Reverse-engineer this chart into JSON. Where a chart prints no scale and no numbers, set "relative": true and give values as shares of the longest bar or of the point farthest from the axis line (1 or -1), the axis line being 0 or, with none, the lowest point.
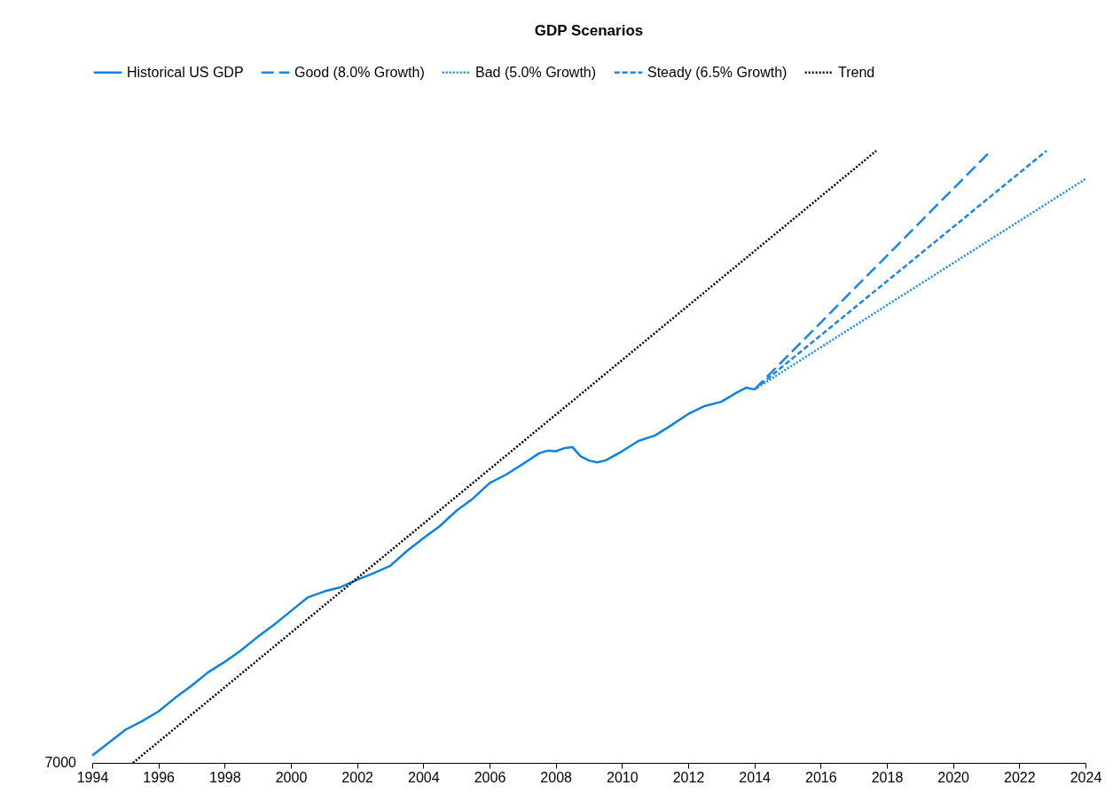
{
  "chart_data": {
    "type": "line",
    "title": "GDP Scenarios",
    "relative": true,
    "legend": "top",
    "xlim": [
      1994,
      2024
    ],
    "xticks": [
      1994,
      1996,
      1998,
      2000,
      2002,
      2004,
      2006,
      2008,
      2010,
      2012,
      2014,
      2016,
      2018,
      2020,
      2022,
      2024
    ],
    "annotations": [
      "7000"
    ],
    "series": [
      {
        "name": "Historical US GDP",
        "type": "line",
        "line_style": "solid",
        "color": "#0a84e0",
        "x": [
          1994.0,
          1994.5,
          1995.0,
          1995.5,
          1996.0,
          1996.5,
          1997.0,
          1997.5,
          1998.0,
          1998.5,
          1999.0,
          1999.5,
          2000.0,
          2000.5,
          2001.0,
          2001.5,
          2002.0,
          2002.5,
          2003.0,
          2003.5,
          2004.0,
          2004.5,
          2005.0,
          2005.5,
          2006.0,
          2006.5,
          2007.0,
          2007.5,
          2007.75,
          2008.0,
          2008.25,
          2008.5,
          2008.75,
          2009.0,
          2009.25,
          2009.5,
          2010.0,
          2010.5,
          2011.0,
          2011.5,
          2012.0,
          2012.5,
          2013.0,
          2013.5,
          2013.75,
          2014.0
        ],
        "values": [
          0.012,
          0.033,
          0.054,
          0.068,
          0.084,
          0.106,
          0.126,
          0.148,
          0.165,
          0.184,
          0.206,
          0.226,
          0.248,
          0.27,
          0.28,
          0.287,
          0.299,
          0.31,
          0.322,
          0.346,
          0.367,
          0.387,
          0.412,
          0.432,
          0.457,
          0.471,
          0.488,
          0.506,
          0.51,
          0.509,
          0.514,
          0.516,
          0.501,
          0.494,
          0.491,
          0.494,
          0.509,
          0.526,
          0.535,
          0.552,
          0.57,
          0.583,
          0.59,
          0.606,
          0.613,
          0.61
        ]
      },
      {
        "name": "Good (8.0% Growth)",
        "type": "line",
        "line_style": "longdash",
        "color": "#1a87e6",
        "x": [
          2014.0,
          2021.14
        ],
        "values": [
          0.61,
          1.0
        ]
      },
      {
        "name": "Bad (5.0% Growth)",
        "type": "line",
        "line_style": "dotted",
        "color": "#1a8cf0",
        "x": [
          2014.0,
          2024.0
        ],
        "values": [
          0.61,
          0.954
        ]
      },
      {
        "name": "Steady (6.5% Growth)",
        "type": "line",
        "line_style": "dashed",
        "color": "#1a87e6",
        "x": [
          2014.0,
          2022.82
        ],
        "values": [
          0.61,
          1.0
        ]
      },
      {
        "name": "Trend",
        "type": "line",
        "line_style": "dotted",
        "color": "#000000",
        "x": [
          1995.23,
          2017.68
        ],
        "values": [
          0,
          1.0
        ]
      }
    ]
  }
}
